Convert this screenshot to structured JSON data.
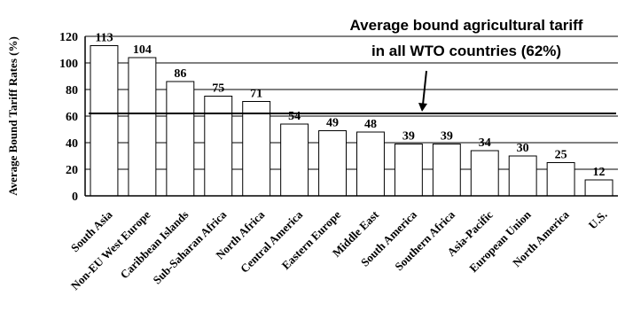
{
  "chart_data": {
    "type": "bar",
    "ylabel": "Average Bound Tariff Rates (%)",
    "ylim": [
      0,
      120
    ],
    "yticks": [
      0,
      20,
      40,
      60,
      80,
      100,
      120
    ],
    "grid": true,
    "categories": [
      "South Asia",
      "Non-EU West Europe",
      "Caribbean Islands",
      "Sub-Saharan Africa",
      "North Africa",
      "Central America",
      "Eastern Europe",
      "Middle East",
      "South America",
      "Southern Africa",
      "Asia-Pacific",
      "European Union",
      "North America",
      "U.S."
    ],
    "values": [
      113,
      104,
      86,
      75,
      71,
      54,
      49,
      48,
      39,
      39,
      34,
      30,
      25,
      12
    ],
    "data_labels": [
      "113",
      "104",
      "86",
      "75",
      "71",
      "54",
      "49",
      "48",
      "39",
      "39",
      "34",
      "30",
      "25",
      "12"
    ],
    "reference_line": {
      "value": 62,
      "annotation_lines": [
        "Average bound agricultural tariff",
        "in all WTO countries (62%)"
      ]
    },
    "colors": {
      "bar_fill": "#ffffff",
      "bar_stroke": "#000000",
      "grid": "#000000",
      "reference": "#000000"
    }
  }
}
